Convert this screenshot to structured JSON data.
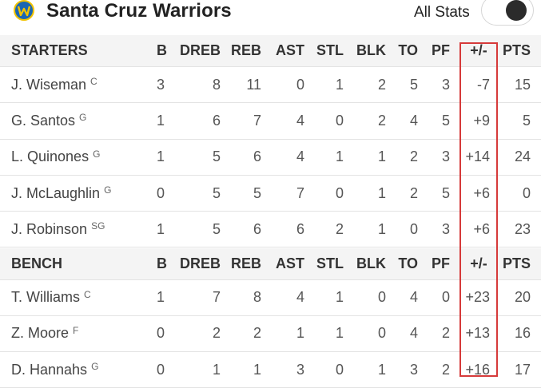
{
  "header": {
    "team_name": "Santa Cruz Warriors",
    "toggle_label": "All Stats",
    "toggle_on": true,
    "logo_colors": {
      "primary": "#1b66b3",
      "accent": "#f2c300"
    }
  },
  "highlight_color": "#d63a3a",
  "columns": [
    "B",
    "DREB",
    "REB",
    "AST",
    "STL",
    "BLK",
    "TO",
    "PF",
    "+/-",
    "PTS"
  ],
  "sections": [
    {
      "title": "STARTERS",
      "players": [
        {
          "name": "J. Wiseman",
          "pos": "C",
          "stats": [
            "3",
            "8",
            "11",
            "0",
            "1",
            "2",
            "5",
            "3",
            "-7",
            "15"
          ]
        },
        {
          "name": "G. Santos",
          "pos": "G",
          "stats": [
            "1",
            "6",
            "7",
            "4",
            "0",
            "2",
            "4",
            "5",
            "+9",
            "5"
          ]
        },
        {
          "name": "L. Quinones",
          "pos": "G",
          "stats": [
            "1",
            "5",
            "6",
            "4",
            "1",
            "1",
            "2",
            "3",
            "+14",
            "24"
          ]
        },
        {
          "name": "J. McLaughlin",
          "pos": "G",
          "stats": [
            "0",
            "5",
            "5",
            "7",
            "0",
            "1",
            "2",
            "5",
            "+6",
            "0"
          ]
        },
        {
          "name": "J. Robinson",
          "pos": "SG",
          "stats": [
            "1",
            "5",
            "6",
            "6",
            "2",
            "1",
            "0",
            "3",
            "+6",
            "23"
          ]
        }
      ]
    },
    {
      "title": "BENCH",
      "players": [
        {
          "name": "T. Williams",
          "pos": "C",
          "stats": [
            "1",
            "7",
            "8",
            "4",
            "1",
            "0",
            "4",
            "0",
            "+23",
            "20"
          ]
        },
        {
          "name": "Z. Moore",
          "pos": "F",
          "stats": [
            "0",
            "2",
            "2",
            "1",
            "1",
            "0",
            "4",
            "2",
            "+13",
            "16"
          ]
        },
        {
          "name": "D. Hannahs",
          "pos": "G",
          "stats": [
            "0",
            "1",
            "1",
            "3",
            "0",
            "1",
            "3",
            "2",
            "+16",
            "17"
          ]
        }
      ]
    }
  ]
}
